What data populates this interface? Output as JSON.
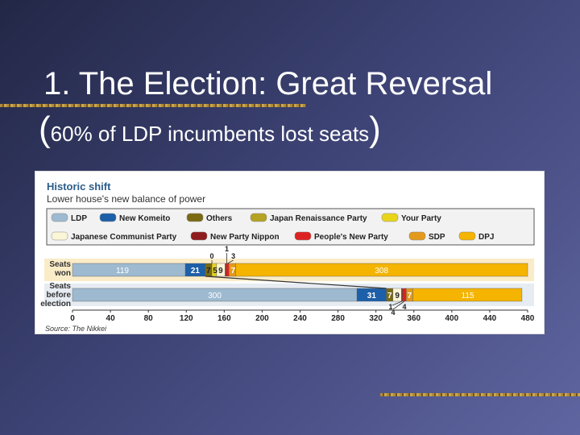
{
  "slide": {
    "title_line1": "1. The Election: Great Reversal",
    "title_line2_open": "(",
    "title_line2_text": "60% of LDP incumbents lost seats",
    "title_line2_close": ")"
  },
  "colors": {
    "LDP": "#9dbad0",
    "New Komeito": "#1d5fa8",
    "Others": "#7a6a12",
    "Japan Renaissance Party": "#b5a323",
    "Your Party": "#e8d51a",
    "Japanese Communist Party": "#fbf5d8",
    "New Party Nippon": "#8e1d1d",
    "People's New Party": "#dd2222",
    "SDP": "#e39a1c",
    "DPJ": "#f5b400"
  },
  "chart_data": {
    "type": "bar",
    "orientation": "horizontal",
    "stacked": true,
    "title": "Historic shift",
    "subtitle": "Lower house's new balance of power",
    "source": "Source: The Nikkei",
    "xlim": [
      0,
      480
    ],
    "xticks": [
      "0",
      "40",
      "80",
      "120",
      "160",
      "200",
      "240",
      "280",
      "320",
      "360",
      "400",
      "440",
      "480"
    ],
    "legend": [
      "LDP",
      "New Komeito",
      "Others",
      "Japan Renaissance Party",
      "Your Party",
      "Japanese Communist Party",
      "New Party Nippon",
      "People's New Party",
      "SDP",
      "DPJ"
    ],
    "rows": [
      {
        "label": [
          "Seats",
          "won"
        ],
        "segments": [
          {
            "party": "LDP",
            "value": 119,
            "label": "119"
          },
          {
            "party": "New Komeito",
            "value": 21,
            "label": "21"
          },
          {
            "party": "Others",
            "value": 7,
            "label": "7"
          },
          {
            "party": "Japan Renaissance Party",
            "value": 0,
            "label": "0"
          },
          {
            "party": "Your Party",
            "value": 5,
            "label": "5"
          },
          {
            "party": "Japanese Communist Party",
            "value": 9,
            "label": "9"
          },
          {
            "party": "New Party Nippon",
            "value": 1,
            "label": "1"
          },
          {
            "party": "People's New Party",
            "value": 3,
            "label": "3"
          },
          {
            "party": "SDP",
            "value": 7,
            "label": "7"
          },
          {
            "party": "DPJ",
            "value": 308,
            "label": "308"
          }
        ]
      },
      {
        "label": [
          "Seats",
          "before",
          "election"
        ],
        "segments": [
          {
            "party": "LDP",
            "value": 300,
            "label": "300"
          },
          {
            "party": "New Komeito",
            "value": 31,
            "label": "31"
          },
          {
            "party": "Others",
            "value": 7,
            "label": "7"
          },
          {
            "party": "Japan Renaissance Party",
            "value": 0,
            "label": ""
          },
          {
            "party": "Your Party",
            "value": 0,
            "label": ""
          },
          {
            "party": "Japanese Communist Party",
            "value": 9,
            "label": "9"
          },
          {
            "party": "New Party Nippon",
            "value": 1,
            "label": "1"
          },
          {
            "party": "People's New Party",
            "value": 4,
            "label": "4"
          },
          {
            "party": "SDP",
            "value": 7,
            "label": "7"
          },
          {
            "party": "DPJ",
            "value": 115,
            "label": "115"
          }
        ]
      }
    ]
  }
}
